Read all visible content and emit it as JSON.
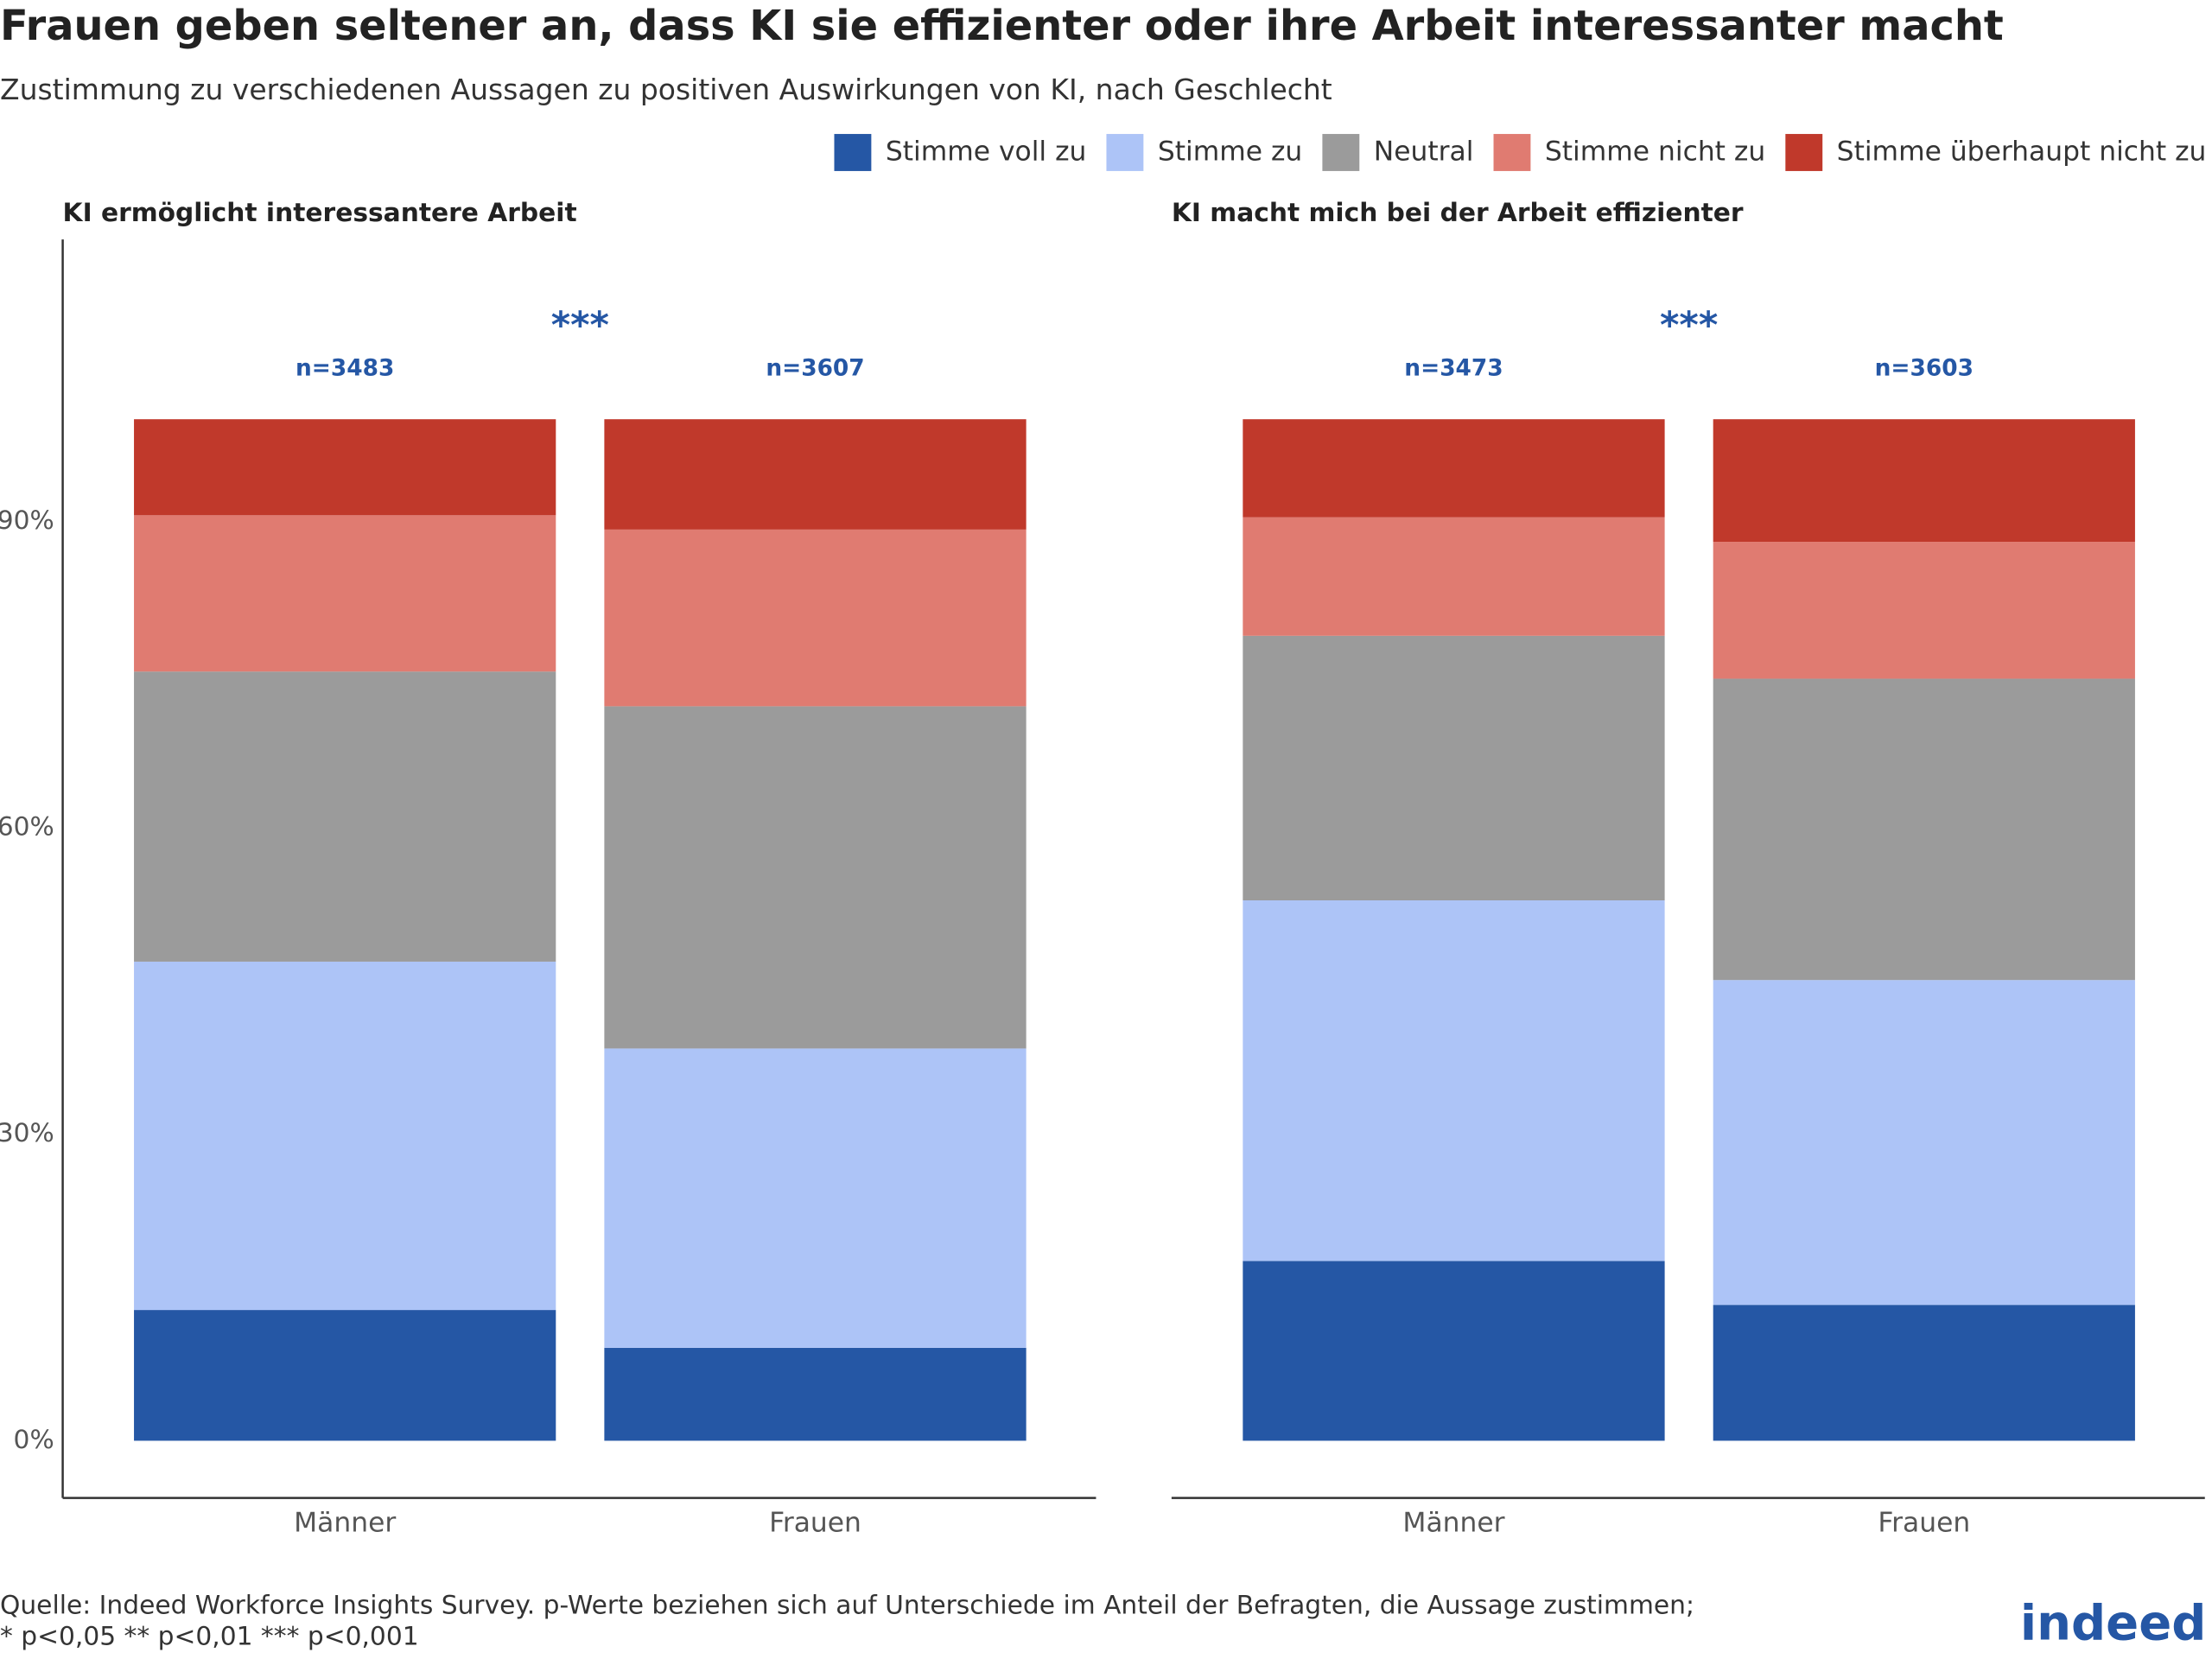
{
  "chart_data": {
    "type": "bar",
    "stacked": true,
    "title": "Frauen geben seltener an, dass KI sie effizienter oder ihre Arbeit interessanter macht",
    "subtitle": "Zustimmung zu verschiedenen Aussagen zu positiven Auswirkungen von KI, nach Geschlecht",
    "legend": [
      {
        "name": "Stimme voll zu",
        "color": "#2557a5"
      },
      {
        "name": "Stimme zu",
        "color": "#adc4f7"
      },
      {
        "name": "Neutral",
        "color": "#9b9b9b"
      },
      {
        "name": "Stimme nicht zu",
        "color": "#e07b71"
      },
      {
        "name": "Stimme überhaupt nicht zu",
        "color": "#c0392b"
      }
    ],
    "ylim": [
      -5.6,
      117.6
    ],
    "yticks": [
      {
        "value": 0,
        "label": "0%"
      },
      {
        "value": 30,
        "label": "30%"
      },
      {
        "value": 60,
        "label": "60%"
      },
      {
        "value": 90,
        "label": "90%"
      }
    ],
    "panels": [
      {
        "title": "KI ermöglicht interessantere Arbeit",
        "categories": [
          "Männer",
          "Frauen"
        ],
        "sample_labels": [
          "n=3483",
          "n=3607"
        ],
        "significance": "***",
        "series": [
          {
            "values": [
              12.8,
              9.1
            ]
          },
          {
            "values": [
              34.1,
              29.3
            ]
          },
          {
            "values": [
              28.4,
              33.5
            ]
          },
          {
            "values": [
              15.3,
              17.3
            ]
          },
          {
            "values": [
              9.4,
              10.8
            ]
          }
        ]
      },
      {
        "title": "KI macht mich bei der Arbeit effizienter",
        "categories": [
          "Männer",
          "Frauen"
        ],
        "sample_labels": [
          "n=3473",
          "n=3603"
        ],
        "significance": "***",
        "series": [
          {
            "values": [
              17.6,
              13.3
            ]
          },
          {
            "values": [
              35.3,
              31.8
            ]
          },
          {
            "values": [
              25.9,
              29.5
            ]
          },
          {
            "values": [
              11.6,
              13.4
            ]
          },
          {
            "values": [
              9.6,
              12.0
            ]
          }
        ]
      }
    ],
    "source": [
      "Quelle: Indeed Workforce Insights Survey. p-Werte beziehen sich auf Unterschiede im Anteil der Befragten, die Aussage zustimmen;",
      "* p<0,05  ** p<0,01  *** p<0,001"
    ],
    "logo": "indeed"
  }
}
